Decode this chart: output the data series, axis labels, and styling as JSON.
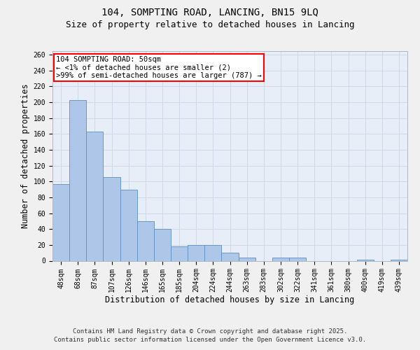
{
  "title1": "104, SOMPTING ROAD, LANCING, BN15 9LQ",
  "title2": "Size of property relative to detached houses in Lancing",
  "xlabel": "Distribution of detached houses by size in Lancing",
  "ylabel": "Number of detached properties",
  "categories": [
    "48sqm",
    "68sqm",
    "87sqm",
    "107sqm",
    "126sqm",
    "146sqm",
    "165sqm",
    "185sqm",
    "204sqm",
    "224sqm",
    "244sqm",
    "263sqm",
    "283sqm",
    "302sqm",
    "322sqm",
    "341sqm",
    "361sqm",
    "380sqm",
    "400sqm",
    "419sqm",
    "439sqm"
  ],
  "values": [
    97,
    203,
    163,
    106,
    90,
    50,
    40,
    18,
    20,
    20,
    10,
    4,
    0,
    4,
    4,
    0,
    0,
    0,
    1,
    0,
    1
  ],
  "bar_color": "#aec6e8",
  "bar_edge_color": "#5a8fc2",
  "annotation_line1": "104 SOMPTING ROAD: 50sqm",
  "annotation_line2": "← <1% of detached houses are smaller (2)",
  "annotation_line3": ">99% of semi-detached houses are larger (787) →",
  "annotation_color": "red",
  "grid_color": "#d0d8e8",
  "background_color": "#e8eef8",
  "fig_background": "#f0f0f0",
  "ylim": [
    0,
    265
  ],
  "yticks": [
    0,
    20,
    40,
    60,
    80,
    100,
    120,
    140,
    160,
    180,
    200,
    220,
    240,
    260
  ],
  "footer_line1": "Contains HM Land Registry data © Crown copyright and database right 2025.",
  "footer_line2": "Contains public sector information licensed under the Open Government Licence v3.0.",
  "title_fontsize": 10,
  "subtitle_fontsize": 9,
  "tick_fontsize": 7,
  "label_fontsize": 8.5,
  "footer_fontsize": 6.5,
  "ann_fontsize": 7.5
}
